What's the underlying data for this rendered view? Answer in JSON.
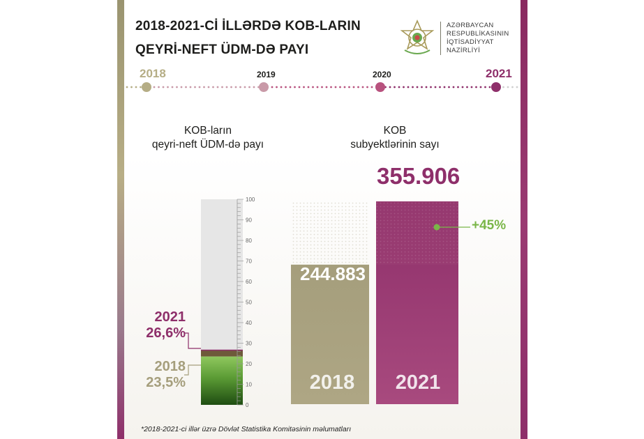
{
  "header": {
    "title_line1": "2018-2021-Cİ İLLƏRDƏ KOB-LARIN",
    "title_line2": "QEYRİ-NEFT ÜDM-DƏ PAYI",
    "ministry": [
      "AZƏRBAYCAN",
      "RESPUBLİKASININ",
      "İQTİSADİYYAT",
      "NAZİRLİYİ"
    ],
    "logo_icon": "emblem-icon"
  },
  "timeline": {
    "years": [
      "2018",
      "2019",
      "2020",
      "2021"
    ],
    "colors": [
      "#b5ad85",
      "#c99aa8",
      "#b8527e",
      "#8e2f6a"
    ]
  },
  "left_panel": {
    "title_line1": "KOB-ların",
    "title_line2": "qeyri-neft ÜDM-də payı",
    "label_2021_year": "2021",
    "label_2021_value": "26,6%",
    "label_2018_year": "2018",
    "label_2018_value": "23,5%"
  },
  "right_panel": {
    "title_line1": "KOB",
    "title_line2": "subyektlərinin sayı",
    "value_2021_label": "355.906",
    "value_2018_label": "244.883",
    "growth_label": "+45%",
    "bar_year_2018": "2018",
    "bar_year_2021": "2021"
  },
  "footnote": "*2018-2021-ci illər üzrə Dövlət Statistika Komitəsinin məlumatları",
  "colors": {
    "olive": "#a59e7c",
    "plum": "#8e2f6a",
    "green": "#7ab648",
    "dark_green": "#2f6b1c",
    "grey_bar": "#e6e6e6"
  },
  "chart_data": [
    {
      "type": "bar",
      "categories": [
        "2018",
        "2021"
      ],
      "values": [
        23.5,
        26.6
      ],
      "value_labels": [
        "23,5%",
        "26,6%"
      ],
      "title": "KOB-ların qeyri-neft ÜDM-də payı",
      "ylim": [
        0,
        100
      ],
      "yticks": [
        0,
        10,
        20,
        30,
        40,
        50,
        60,
        70,
        80,
        90,
        100
      ],
      "grid": false
    },
    {
      "type": "bar",
      "categories": [
        "2018",
        "2021"
      ],
      "values": [
        244883,
        355906
      ],
      "value_labels": [
        "244.883",
        "355.906"
      ],
      "title": "KOB subyektlərinin sayı",
      "annotation": "+45%"
    }
  ]
}
